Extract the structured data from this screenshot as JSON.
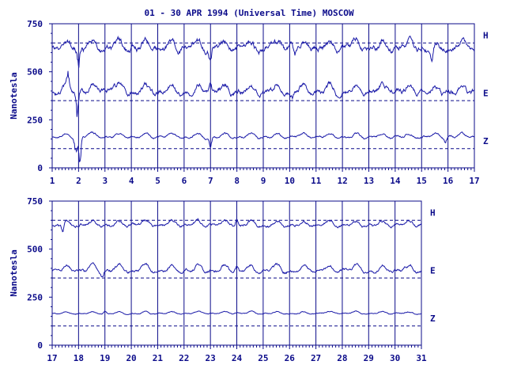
{
  "title": "01 - 30 APR 1994 (Universal Time) MOSCOW",
  "colors": {
    "axis": "#0b0b8a",
    "trace": "#1a1aa8",
    "text": "#0b0b8a"
  },
  "chart_data": [
    {
      "type": "line",
      "ylabel": "Nanotesla",
      "xlim": [
        1,
        17
      ],
      "ylim": [
        0,
        750
      ],
      "x_ticks": [
        "1",
        "2",
        "3",
        "4",
        "5",
        "6",
        "7",
        "8",
        "9",
        "10",
        "11",
        "12",
        "13",
        "14",
        "15",
        "16",
        "17"
      ],
      "y_ticks": [
        "0",
        "250",
        "500",
        "750"
      ],
      "grid": "vertical lines at each day",
      "series": [
        {
          "name": "H",
          "baseline": 650,
          "mean": 630,
          "amplitude": 30,
          "noise": 18,
          "disturbances": [
            {
              "day": 2.0,
              "depth": 120
            },
            {
              "day": 7.0,
              "depth": 60
            },
            {
              "day": 10.2,
              "depth": 50
            },
            {
              "day": 15.4,
              "depth": 60
            }
          ]
        },
        {
          "name": "E",
          "baseline": 350,
          "mean": 405,
          "amplitude": 28,
          "noise": 16,
          "disturbances": [
            {
              "day": 1.6,
              "depth": -70
            },
            {
              "day": 1.95,
              "depth": 140
            },
            {
              "day": 7.0,
              "depth": -50
            },
            {
              "day": 10.1,
              "depth": 40
            }
          ]
        },
        {
          "name": "Z",
          "baseline": 100,
          "mean": 165,
          "amplitude": 15,
          "noise": 6,
          "disturbances": [
            {
              "day": 1.9,
              "depth": 95
            },
            {
              "day": 2.05,
              "depth": 140
            },
            {
              "day": 7.0,
              "depth": 60
            },
            {
              "day": 15.9,
              "depth": 30
            }
          ]
        }
      ]
    },
    {
      "type": "line",
      "ylabel": "Nanotesla",
      "xlim": [
        17,
        31
      ],
      "ylim": [
        0,
        750
      ],
      "x_ticks": [
        "17",
        "18",
        "19",
        "20",
        "21",
        "22",
        "23",
        "24",
        "25",
        "26",
        "27",
        "28",
        "29",
        "30",
        "31"
      ],
      "y_ticks": [
        "0",
        "250",
        "500",
        "750"
      ],
      "grid": "vertical lines at each day",
      "series": [
        {
          "name": "H",
          "baseline": 650,
          "mean": 630,
          "amplitude": 18,
          "noise": 8,
          "disturbances": [
            {
              "day": 17.4,
              "depth": 40
            },
            {
              "day": 24.0,
              "depth": -30
            }
          ]
        },
        {
          "name": "E",
          "baseline": 350,
          "mean": 395,
          "amplitude": 22,
          "noise": 9,
          "disturbances": [
            {
              "day": 18.9,
              "depth": 40
            },
            {
              "day": 24.0,
              "depth": -25
            }
          ]
        },
        {
          "name": "Z",
          "baseline": 100,
          "mean": 167,
          "amplitude": 8,
          "noise": 3,
          "disturbances": [
            {
              "day": 19.0,
              "depth": -15
            }
          ]
        }
      ]
    }
  ]
}
